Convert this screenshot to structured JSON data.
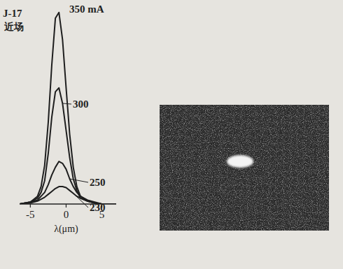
{
  "chart_data": {
    "type": "line",
    "title": "J-17",
    "subtitle": "近场",
    "x_label": "λ(μm)",
    "x": [
      -6.5,
      -5,
      -4,
      -3.5,
      -3,
      -2.5,
      -2,
      -1.5,
      -1,
      -0.5,
      0,
      0.5,
      1,
      1.5,
      2,
      3,
      4,
      5,
      7
    ],
    "series": [
      {
        "name": "350 mA",
        "color": "#1e1e1e",
        "values": [
          0,
          1,
          4,
          9,
          20,
          42,
          72,
          96,
          99,
          85,
          60,
          36,
          19,
          9,
          4,
          1.5,
          0.5,
          0,
          0
        ]
      },
      {
        "name": "300",
        "color": "#1e1e1e",
        "values": [
          0,
          1,
          3,
          6,
          12,
          26,
          45,
          58,
          60,
          52,
          38,
          24,
          13,
          7,
          3,
          1.5,
          0.5,
          0,
          0
        ]
      },
      {
        "name": "250",
        "color": "#1e1e1e",
        "values": [
          0,
          1,
          2,
          4,
          6,
          10,
          15,
          19,
          22,
          21,
          18,
          13,
          9,
          6,
          4,
          2,
          1,
          0,
          0
        ]
      },
      {
        "name": "230",
        "color": "#1e1e1e",
        "values": [
          0,
          0.5,
          1.5,
          2.5,
          3.5,
          5,
          6.5,
          8,
          9,
          9,
          8.5,
          7,
          5.5,
          4,
          3,
          1.5,
          0.5,
          0,
          0
        ]
      }
    ],
    "xlim": [
      -6.5,
      7
    ],
    "xticks": [
      -5,
      0,
      5
    ],
    "ylim": [
      0,
      100
    ],
    "tick_labels": "x",
    "grid": false
  }
}
